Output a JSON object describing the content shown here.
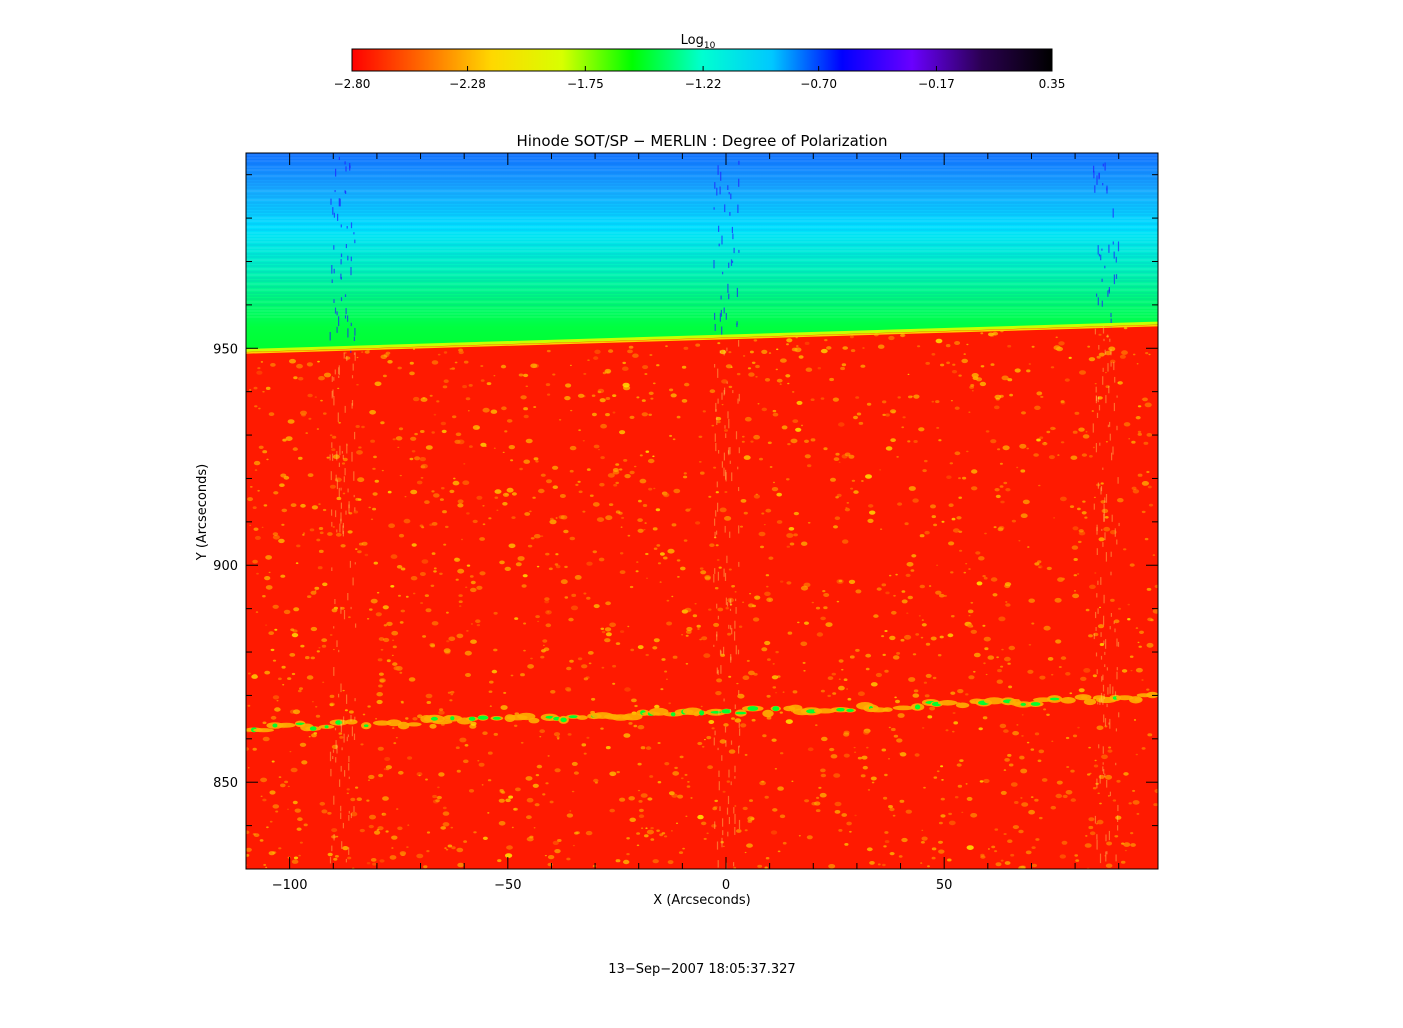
{
  "colorbar": {
    "label_base": "Log",
    "label_sub": "10",
    "ticks": [
      "-2.80",
      "-2.28",
      "-1.75",
      "-1.22",
      "-0.70",
      "-0.17",
      "0.35"
    ],
    "range": [
      -2.8,
      0.35
    ],
    "colormap": [
      "#ff0000",
      "#ff6a00",
      "#ffd800",
      "#d8ff00",
      "#00ff00",
      "#00ffd0",
      "#00c8ff",
      "#0000ff",
      "#6a00ff",
      "#2a0050",
      "#000000"
    ]
  },
  "colors": {
    "low": "#ff1a00",
    "speckle": "#ffb000",
    "limb": "#c8ff00",
    "above_limb_bottom": "#00ff30",
    "above_limb_mid": "#00e8ff",
    "above_limb_top": "#1070ff",
    "streak": "#2020ff"
  },
  "chart_data": {
    "type": "heatmap",
    "title": "Hinode SOT/SP − MERLIN : Degree of Polarization",
    "xlabel": "X (Arcseconds)",
    "ylabel": "Y (Arcseconds)",
    "xlim": [
      -110,
      99
    ],
    "ylim": [
      830,
      995
    ],
    "x_ticks": [
      -100,
      -50,
      0,
      50
    ],
    "y_ticks": [
      850,
      900,
      950
    ],
    "x_tick_labels": [
      "−100",
      "−50",
      "0",
      "50"
    ],
    "y_tick_labels": [
      "850",
      "900",
      "950"
    ],
    "limb": {
      "x": [
        -110,
        99
      ],
      "y": [
        949.5,
        955.8
      ]
    },
    "network_band": {
      "x": [
        -110,
        99
      ],
      "y": [
        862.5,
        869.5
      ]
    },
    "streak_x": [
      -88,
      0,
      87
    ]
  },
  "timestamp": "13−Sep−2007 18:05:37.327"
}
